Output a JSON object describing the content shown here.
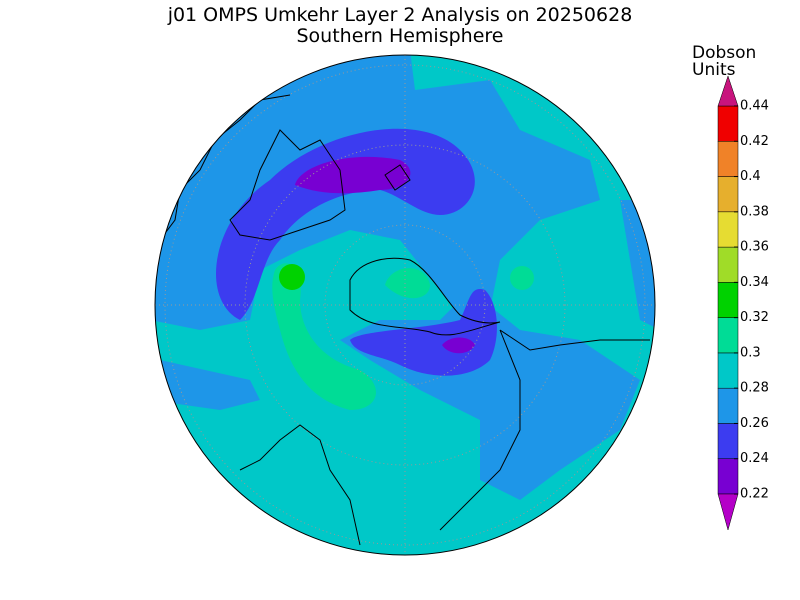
{
  "title": "j01 OMPS Umkehr Layer 2 Analysis on 20250628",
  "subtitle": "Southern Hemisphere",
  "colorbar": {
    "label_lines": [
      "Dobson",
      "Units"
    ],
    "ticks": [
      0.22,
      0.24,
      0.26,
      0.28,
      0.3,
      0.32,
      0.34,
      0.36,
      0.38,
      0.4,
      0.42,
      0.44
    ],
    "colors": [
      "#7800d2",
      "#3c3cf0",
      "#1e96e8",
      "#00c8c8",
      "#00dc96",
      "#00d200",
      "#a0dc28",
      "#e6dc32",
      "#e6af2d",
      "#f08228",
      "#f00000"
    ],
    "under_color": "#b400c8",
    "over_color": "#c8147d"
  }
}
